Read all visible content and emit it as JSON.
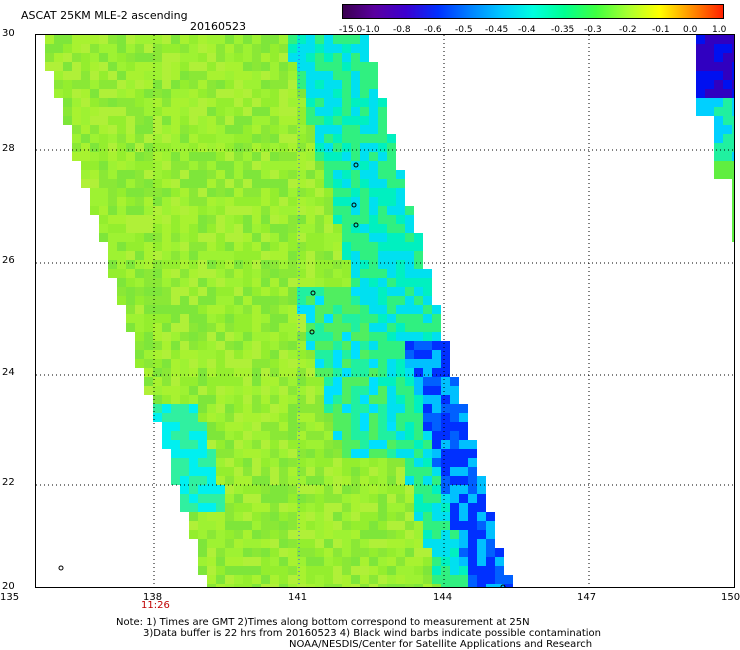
{
  "header": {
    "title": "ASCAT 25KM MLE-2 ascending",
    "date": "20160523"
  },
  "colorbar": {
    "labels": [
      "-15.0",
      "-1.0",
      "-0.8",
      "-0.6",
      "-0.5",
      "-0.45",
      "-0.4",
      "-0.35",
      "-0.3",
      "-0.2",
      "-0.1",
      "0.0",
      "1.0"
    ],
    "colors": [
      "#3a0050",
      "#5a00a0",
      "#3c00d0",
      "#0030ff",
      "#0080ff",
      "#00c8ff",
      "#00ffe0",
      "#00ff90",
      "#40ff40",
      "#a8ff30",
      "#ffff00",
      "#ff9000",
      "#ff2000"
    ]
  },
  "axes": {
    "y_ticks": [
      "30",
      "28",
      "26",
      "24",
      "22",
      "20"
    ],
    "x_ticks": [
      "135",
      "138",
      "141",
      "144",
      "147",
      "150"
    ],
    "time_label": "11:26"
  },
  "notes": {
    "line1": "Note: 1) Times are GMT 2)Times along bottom correspond to measurement at 25N",
    "line2": "3)Data buffer is 22 hrs from 20160523 4) Black wind barbs indicate possible contamination",
    "line3": "NOAA/NESDIS/Center for Satellite Applications and Research"
  }
}
